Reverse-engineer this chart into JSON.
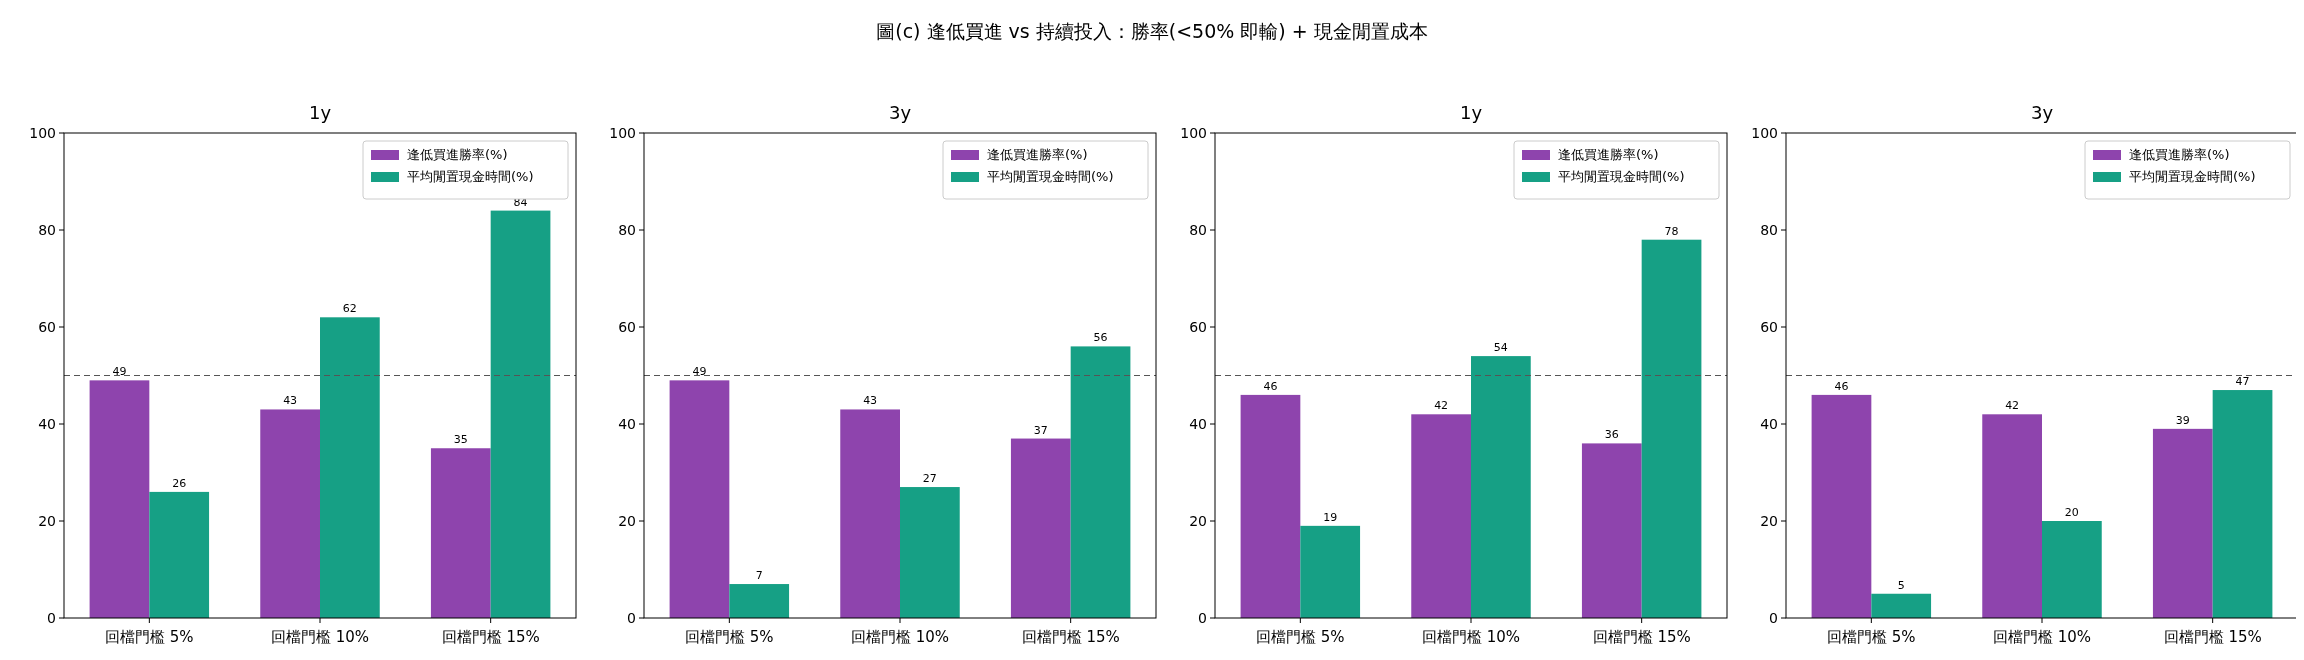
{
  "chart_data": [
    {
      "type": "bar",
      "title": "1y",
      "annotations": [
        "圖(c) 逢低買進 vs 持續投入：勝率(<50% 即輸) + 現金閒置成本"
      ],
      "categories": [
        "回檔門檻 5%",
        "回檔門檻 10%",
        "回檔門檻 15%"
      ],
      "series": [
        {
          "name": "逢低買進勝率(%)",
          "color": "#8e44ad",
          "values": [
            49,
            43,
            35
          ]
        },
        {
          "name": "平均閒置現金時間(%)",
          "color": "#16a085",
          "values": [
            26,
            62,
            84
          ]
        }
      ],
      "ylim": [
        0,
        100
      ],
      "yticks": [
        0,
        20,
        40,
        60,
        80,
        100
      ],
      "data_labels": true,
      "legend": "top right",
      "ref_lines": [
        {
          "axis": "y",
          "value": 50,
          "color": "#555555",
          "line_style": "dashed"
        }
      ]
    },
    {
      "type": "bar",
      "title": "3y",
      "categories": [
        "回檔門檻 5%",
        "回檔門檻 10%",
        "回檔門檻 15%"
      ],
      "series": [
        {
          "name": "逢低買進勝率(%)",
          "color": "#8e44ad",
          "values": [
            49,
            43,
            37
          ]
        },
        {
          "name": "平均閒置現金時間(%)",
          "color": "#16a085",
          "values": [
            7,
            27,
            56
          ]
        }
      ],
      "ylim": [
        0,
        100
      ],
      "yticks": [
        0,
        20,
        40,
        60,
        80,
        100
      ],
      "data_labels": true,
      "legend": "top right",
      "ref_lines": [
        {
          "axis": "y",
          "value": 50,
          "color": "#555555",
          "line_style": "dashed"
        }
      ]
    },
    {
      "type": "bar",
      "title": "1y",
      "categories": [
        "回檔門檻 5%",
        "回檔門檻 10%",
        "回檔門檻 15%"
      ],
      "series": [
        {
          "name": "逢低買進勝率(%)",
          "color": "#8e44ad",
          "values": [
            46,
            42,
            36
          ]
        },
        {
          "name": "平均閒置現金時間(%)",
          "color": "#16a085",
          "values": [
            19,
            54,
            78
          ]
        }
      ],
      "ylim": [
        0,
        100
      ],
      "yticks": [
        0,
        20,
        40,
        60,
        80,
        100
      ],
      "data_labels": true,
      "legend": "top right",
      "ref_lines": [
        {
          "axis": "y",
          "value": 50,
          "color": "#555555",
          "line_style": "dashed"
        }
      ]
    },
    {
      "type": "bar",
      "title": "3y",
      "categories": [
        "回檔門檻 5%",
        "回檔門檻 10%",
        "回檔門檻 15%"
      ],
      "series": [
        {
          "name": "逢低買進勝率(%)",
          "color": "#8e44ad",
          "values": [
            46,
            42,
            39
          ]
        },
        {
          "name": "平均閒置現金時間(%)",
          "color": "#16a085",
          "values": [
            5,
            20,
            47
          ]
        }
      ],
      "ylim": [
        0,
        100
      ],
      "yticks": [
        0,
        20,
        40,
        60,
        80,
        100
      ],
      "data_labels": true,
      "legend": "top right",
      "ref_lines": [
        {
          "axis": "y",
          "value": 50,
          "color": "#555555",
          "line_style": "dashed"
        }
      ]
    }
  ]
}
